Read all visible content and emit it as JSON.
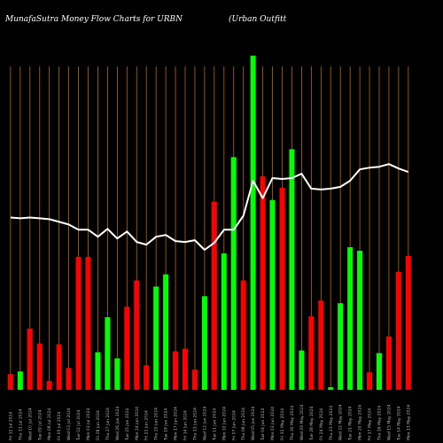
{
  "title_left": "MunafaSutra  Money Flow  Charts for URBN",
  "title_right": "(Urban  Outfitt",
  "colors": {
    "background": "#000000",
    "up": "#00ff00",
    "down": "#ff0000",
    "grid": "#b8680e",
    "line": "#ffffff"
  },
  "chart_data": {
    "type": "bar",
    "categories": [
      "Fri 12 Jul 2024",
      "Thu 11 Jul 2024",
      "Wed 10 Jul 2024",
      "Tue 09 Jul 2024",
      "Mon 08 Jul 2024",
      "Fri 05 Jul 2024",
      "Wed 03 Jul 2024",
      "Tue 02 Jul 2024",
      "Mon 01 Jul 2024",
      "Fri 28 Jun 2024",
      "Thu 27 Jun 2024",
      "Wed 26 Jun 2024",
      "Tue 25 Jun 2024",
      "Mon 24 Jun 2024",
      "Fri 21 Jun 2024",
      "Thu 20 Jun 2024",
      "Tue 18 Jun 2024",
      "Mon 17 Jun 2024",
      "Fri 14 Jun 2024",
      "Thu 13 Jun 2024",
      "Wed 12 Jun 2024",
      "Tue 11 Jun 2024",
      "Mon 10 Jun 2024",
      "Fri 07 Jun 2024",
      "Thu 06 Jun 2024",
      "Wed 05 Jun 2024",
      "Tue 04 Jun 2024",
      "Mon 03 Jun 2024",
      "Fri 31 May 2024",
      "Thu 30 May 2024",
      "Wed 29 May 2024",
      "Tue 28 May 2024",
      "Fri 24 May 2024",
      "Thu 23 May 2024",
      "Wed 22 May 2024",
      "Tue 21 May 2024",
      "Mon 20 May 2024",
      "Fri 17 May 2024",
      "Thu 16 May 2024",
      "Wed 15 May 2024",
      "Tue 14 May 2024",
      "Mon 13 May 2024"
    ],
    "values": [
      1.8,
      2.1,
      7.0,
      5.3,
      1.0,
      5.2,
      2.5,
      15.2,
      15.2,
      4.3,
      8.3,
      3.6,
      9.5,
      12.5,
      2.8,
      11.8,
      13.2,
      4.4,
      4.7,
      2.3,
      10.7,
      21.5,
      15.6,
      26.6,
      12.5,
      38.2,
      24.4,
      21.7,
      23.1,
      27.5,
      4.5,
      8.4,
      10.2,
      0.3,
      9.9,
      16.3,
      15.9,
      2.0,
      4.2,
      6.1,
      13.5,
      15.3
    ],
    "directions": [
      "down",
      "up",
      "down",
      "down",
      "down",
      "down",
      "down",
      "down",
      "down",
      "up",
      "up",
      "up",
      "down",
      "down",
      "down",
      "up",
      "up",
      "down",
      "down",
      "down",
      "up",
      "down",
      "up",
      "up",
      "down",
      "up",
      "down",
      "up",
      "down",
      "up",
      "up",
      "down",
      "down",
      "up",
      "up",
      "up",
      "up",
      "down",
      "up",
      "down",
      "down",
      "down"
    ],
    "line_values": [
      19.7,
      19.6,
      19.7,
      19.6,
      19.5,
      19.2,
      18.9,
      18.3,
      18.3,
      17.5,
      18.4,
      17.3,
      18.1,
      16.9,
      16.6,
      17.5,
      17.7,
      17.0,
      16.9,
      17.1,
      16.0,
      16.8,
      18.3,
      18.3,
      19.9,
      23.9,
      21.9,
      24.2,
      24.1,
      24.2,
      24.7,
      23.0,
      22.9,
      23.0,
      23.2,
      23.9,
      25.2,
      25.4,
      25.5,
      25.8,
      25.3,
      24.9
    ],
    "ylim": [
      0,
      40
    ],
    "xlabel": "",
    "ylabel": ""
  }
}
